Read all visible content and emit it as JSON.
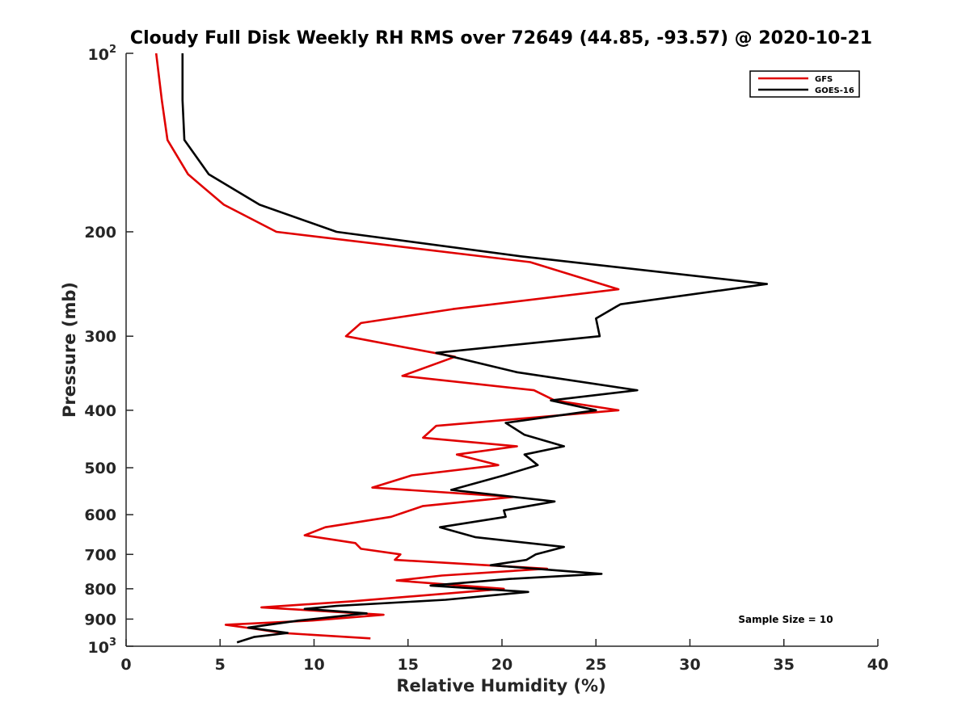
{
  "chart_data": {
    "type": "line",
    "title": "Cloudy Full Disk Weekly RH RMS over 72649 (44.85, -93.57) @ 2020-10-21",
    "xlabel": "Relative Humidity (%)",
    "ylabel": "Pressure (mb)",
    "xlim": [
      0,
      40
    ],
    "ylim": [
      100,
      1000
    ],
    "y_scale": "log",
    "y_reversed": true,
    "x_ticks": [
      "0",
      "5",
      "10",
      "15",
      "20",
      "25",
      "30",
      "35",
      "40"
    ],
    "y_ticks": [
      {
        "value": 100,
        "label": "10",
        "sup": "2"
      },
      {
        "value": 200,
        "label": "200",
        "sup": ""
      },
      {
        "value": 300,
        "label": "300",
        "sup": ""
      },
      {
        "value": 400,
        "label": "400",
        "sup": ""
      },
      {
        "value": 500,
        "label": "500",
        "sup": ""
      },
      {
        "value": 600,
        "label": "600",
        "sup": ""
      },
      {
        "value": 700,
        "label": "700",
        "sup": ""
      },
      {
        "value": 800,
        "label": "800",
        "sup": ""
      },
      {
        "value": 900,
        "label": "900",
        "sup": ""
      },
      {
        "value": 1000,
        "label": "10",
        "sup": "3"
      }
    ],
    "legend_position": "top-right",
    "annotation": "Sample Size = 10",
    "series": [
      {
        "name": "GFS",
        "color": "#e00000",
        "points": [
          [
            1.6,
            100
          ],
          [
            1.9,
            120
          ],
          [
            2.2,
            140
          ],
          [
            3.3,
            160
          ],
          [
            5.2,
            180
          ],
          [
            8.0,
            200
          ],
          [
            21.5,
            225
          ],
          [
            26.2,
            250
          ],
          [
            17.4,
            270
          ],
          [
            12.5,
            285
          ],
          [
            11.7,
            300
          ],
          [
            17.5,
            325
          ],
          [
            14.7,
            350
          ],
          [
            21.7,
            370
          ],
          [
            22.8,
            385
          ],
          [
            26.2,
            400
          ],
          [
            16.5,
            425
          ],
          [
            15.8,
            445
          ],
          [
            20.8,
            460
          ],
          [
            17.6,
            475
          ],
          [
            19.8,
            495
          ],
          [
            15.2,
            515
          ],
          [
            13.1,
            540
          ],
          [
            20.6,
            560
          ],
          [
            15.8,
            580
          ],
          [
            14.1,
            605
          ],
          [
            10.6,
            630
          ],
          [
            9.5,
            650
          ],
          [
            12.2,
            670
          ],
          [
            12.5,
            685
          ],
          [
            14.6,
            700
          ],
          [
            14.3,
            715
          ],
          [
            22.4,
            740
          ],
          [
            16.8,
            760
          ],
          [
            14.4,
            775
          ],
          [
            20.1,
            800
          ],
          [
            12.0,
            840
          ],
          [
            7.2,
            860
          ],
          [
            13.7,
            885
          ],
          [
            9.9,
            905
          ],
          [
            5.3,
            920
          ],
          [
            6.9,
            935
          ],
          [
            8.3,
            950
          ],
          [
            13.0,
            970
          ]
        ]
      },
      {
        "name": "GOES-16",
        "color": "#000000",
        "points": [
          [
            3.0,
            100
          ],
          [
            3.0,
            120
          ],
          [
            3.1,
            140
          ],
          [
            4.4,
            160
          ],
          [
            7.1,
            180
          ],
          [
            11.2,
            200
          ],
          [
            21.0,
            220
          ],
          [
            34.1,
            245
          ],
          [
            26.3,
            265
          ],
          [
            25.0,
            280
          ],
          [
            25.2,
            300
          ],
          [
            16.5,
            320
          ],
          [
            20.8,
            345
          ],
          [
            27.2,
            370
          ],
          [
            22.6,
            385
          ],
          [
            25.0,
            400
          ],
          [
            20.2,
            420
          ],
          [
            21.2,
            440
          ],
          [
            23.3,
            460
          ],
          [
            21.2,
            475
          ],
          [
            21.9,
            495
          ],
          [
            20.1,
            515
          ],
          [
            17.3,
            545
          ],
          [
            22.8,
            570
          ],
          [
            20.1,
            590
          ],
          [
            20.2,
            605
          ],
          [
            16.7,
            630
          ],
          [
            18.6,
            655
          ],
          [
            23.3,
            680
          ],
          [
            21.8,
            700
          ],
          [
            21.3,
            715
          ],
          [
            19.4,
            730
          ],
          [
            25.3,
            755
          ],
          [
            20.4,
            770
          ],
          [
            16.2,
            790
          ],
          [
            21.4,
            810
          ],
          [
            17.0,
            835
          ],
          [
            11.2,
            855
          ],
          [
            9.5,
            865
          ],
          [
            12.8,
            880
          ],
          [
            9.2,
            905
          ],
          [
            6.5,
            930
          ],
          [
            8.6,
            950
          ],
          [
            6.8,
            965
          ],
          [
            5.9,
            985
          ]
        ]
      }
    ]
  }
}
